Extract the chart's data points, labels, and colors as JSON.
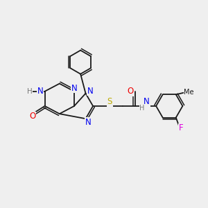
{
  "background_color": "#efefef",
  "bond_color": "#1a1a1a",
  "atom_colors": {
    "N": "#0000ee",
    "O": "#ee0000",
    "S": "#bbaa00",
    "F": "#dd00dd",
    "C": "#1a1a1a",
    "H": "#777777"
  }
}
